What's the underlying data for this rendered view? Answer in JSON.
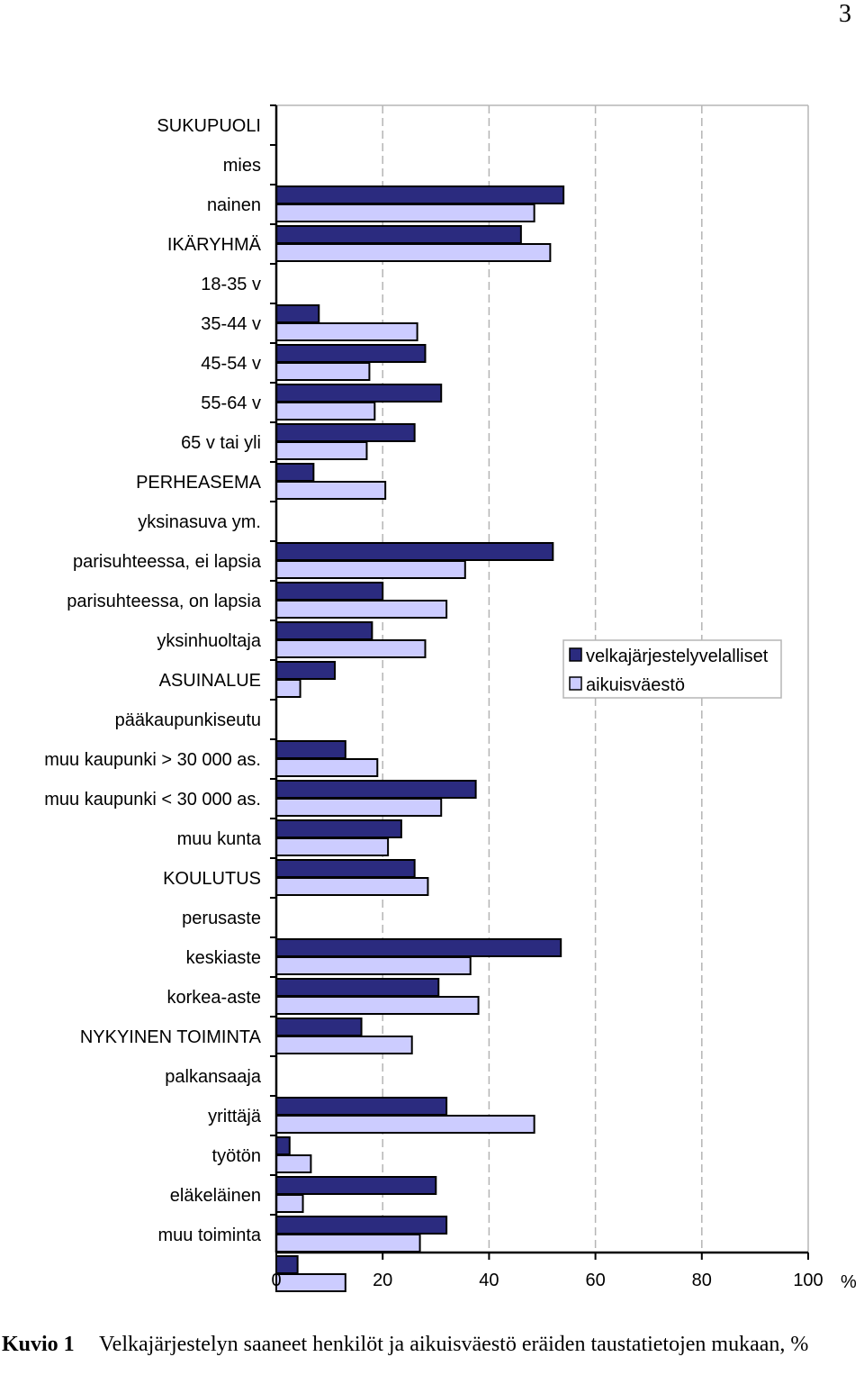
{
  "page_number": "3",
  "caption": {
    "label": "Kuvio 1",
    "text": "Velkajärjestelyn saaneet henkilöt ja aikuisväestö eräiden taustatietojen mukaan, %"
  },
  "chart_data": {
    "type": "bar",
    "orientation": "horizontal",
    "categories": [
      "SUKUPUOLI",
      "mies",
      "nainen",
      "IKÄRYHMÄ",
      "18-35 v",
      "35-44 v",
      "45-54 v",
      "55-64 v",
      "65 v tai yli",
      "PERHEASEMA",
      "yksinasuva ym.",
      "parisuhteessa, ei lapsia",
      "parisuhteessa, on lapsia",
      "yksinhuoltaja",
      "ASUINALUE",
      "pääkaupunkiseutu",
      "muu kaupunki > 30 000 as.",
      "muu kaupunki < 30 000 as.",
      "muu kunta",
      "KOULUTUS",
      "perusaste",
      "keskiaste",
      "korkea-aste",
      "NYKYINEN TOIMINTA",
      "palkansaaja",
      "yrittäjä",
      "työtön",
      "eläkeläinen",
      "muu toiminta"
    ],
    "series": [
      {
        "name": "velkajärjestelyvelalliset",
        "color": "#2B2B7F",
        "values": [
          null,
          54,
          46,
          null,
          8,
          28,
          31,
          26,
          7,
          null,
          52,
          20,
          18,
          11,
          null,
          13,
          37.5,
          23.5,
          26,
          null,
          53.5,
          30.5,
          16,
          null,
          32,
          2.5,
          30,
          32,
          4
        ]
      },
      {
        "name": "aikuisväestö",
        "color": "#CCCCFF",
        "values": [
          null,
          48.5,
          51.5,
          null,
          26.5,
          17.5,
          18.5,
          17,
          20.5,
          null,
          35.5,
          32,
          28,
          4.5,
          null,
          19,
          31,
          21,
          28.5,
          null,
          36.5,
          38,
          25.5,
          null,
          48.5,
          6.5,
          5,
          27,
          13
        ]
      }
    ],
    "x_ticks": [
      "0",
      "20",
      "40",
      "60",
      "80",
      "100"
    ],
    "xlabel": "%",
    "xlim": [
      0,
      100
    ],
    "grid": "vertical dashed",
    "legend_position": "right-middle"
  }
}
